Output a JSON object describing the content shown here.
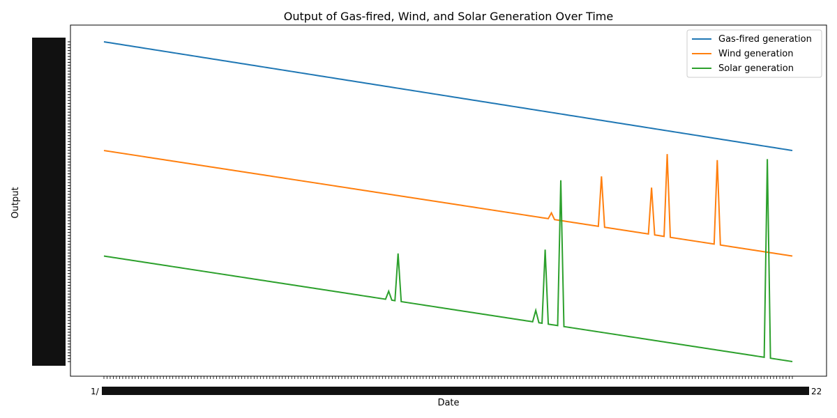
{
  "chart_data": {
    "type": "line",
    "title": "Output of Gas-fired, Wind, and Solar Generation Over Time",
    "xlabel": "Date",
    "ylabel": "Output",
    "x_tick_labels_note_start": "1/",
    "x_tick_labels_note_end": "22",
    "x_count": 221,
    "legend_position": "top-right",
    "grid": false,
    "series": [
      {
        "name": "Gas-fired generation",
        "color": "#1f77b4",
        "start_level": 100,
        "end_level": 66,
        "spikes": []
      },
      {
        "name": "Wind generation",
        "color": "#ff7f0e",
        "start_level": 66,
        "end_level": 33,
        "spikes": [
          {
            "index": 143,
            "level": 46.5
          },
          {
            "index": 159,
            "level": 57.9
          },
          {
            "index": 175,
            "level": 54.4
          },
          {
            "index": 180,
            "level": 64.9
          },
          {
            "index": 196,
            "level": 63.0
          }
        ]
      },
      {
        "name": "Solar generation",
        "color": "#2ca02c",
        "start_level": 33,
        "end_level": 0,
        "spikes": [
          {
            "index": 91,
            "level": 22.0
          },
          {
            "index": 94,
            "level": 33.8
          },
          {
            "index": 138,
            "level": 16.0
          },
          {
            "index": 141,
            "level": 35.0
          },
          {
            "index": 146,
            "level": 56.7
          },
          {
            "index": 212,
            "level": 63.3
          }
        ]
      }
    ]
  }
}
